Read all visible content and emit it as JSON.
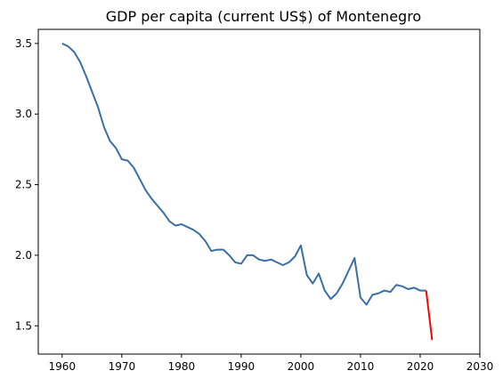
{
  "chart_data": {
    "type": "line",
    "title": "GDP per capita (current US$) of Montenegro",
    "xlabel": "",
    "ylabel": "",
    "xlim": [
      1956,
      2030
    ],
    "ylim": [
      1.3,
      3.6
    ],
    "xticks": [
      1960,
      1970,
      1980,
      1990,
      2000,
      2010,
      2020,
      2030
    ],
    "xtick_labels": [
      "1960",
      "1970",
      "1980",
      "1990",
      "2000",
      "2010",
      "2020",
      "2030"
    ],
    "yticks": [
      1.5,
      2.0,
      2.5,
      3.0,
      3.5
    ],
    "ytick_labels": [
      "1.5",
      "2.0",
      "2.5",
      "3.0",
      "3.5"
    ],
    "grid": false,
    "series": [
      {
        "color": "#3a6ea5",
        "x": [
          1960,
          1961,
          1962,
          1963,
          1964,
          1965,
          1966,
          1967,
          1968,
          1969,
          1970,
          1971,
          1972,
          1973,
          1974,
          1975,
          1976,
          1977,
          1978,
          1979,
          1980,
          1981,
          1982,
          1983,
          1984,
          1985,
          1986,
          1987,
          1988,
          1989,
          1990,
          1991,
          1992,
          1993,
          1994,
          1995,
          1996,
          1997,
          1998,
          1999,
          2000,
          2001,
          2002,
          2003,
          2004,
          2005,
          2006,
          2007,
          2008,
          2009,
          2010,
          2011,
          2012,
          2013,
          2014,
          2015,
          2016,
          2017,
          2018,
          2019,
          2020,
          2021
        ],
        "y": [
          3.5,
          3.48,
          3.44,
          3.37,
          3.27,
          3.16,
          3.05,
          2.91,
          2.81,
          2.76,
          2.68,
          2.67,
          2.62,
          2.54,
          2.46,
          2.4,
          2.35,
          2.3,
          2.24,
          2.21,
          2.22,
          2.2,
          2.18,
          2.15,
          2.1,
          2.03,
          2.04,
          2.04,
          2.0,
          1.95,
          1.94,
          2.0,
          2.0,
          1.97,
          1.96,
          1.97,
          1.95,
          1.93,
          1.95,
          1.99,
          2.07,
          1.86,
          1.8,
          1.87,
          1.75,
          1.69,
          1.73,
          1.8,
          1.89,
          1.98,
          1.7,
          1.65,
          1.72,
          1.73,
          1.75,
          1.74,
          1.79,
          1.78,
          1.76,
          1.77,
          1.75,
          1.75
        ]
      },
      {
        "color": "#ff0000",
        "x": [
          2021,
          2022
        ],
        "y": [
          1.75,
          1.4
        ]
      }
    ]
  }
}
